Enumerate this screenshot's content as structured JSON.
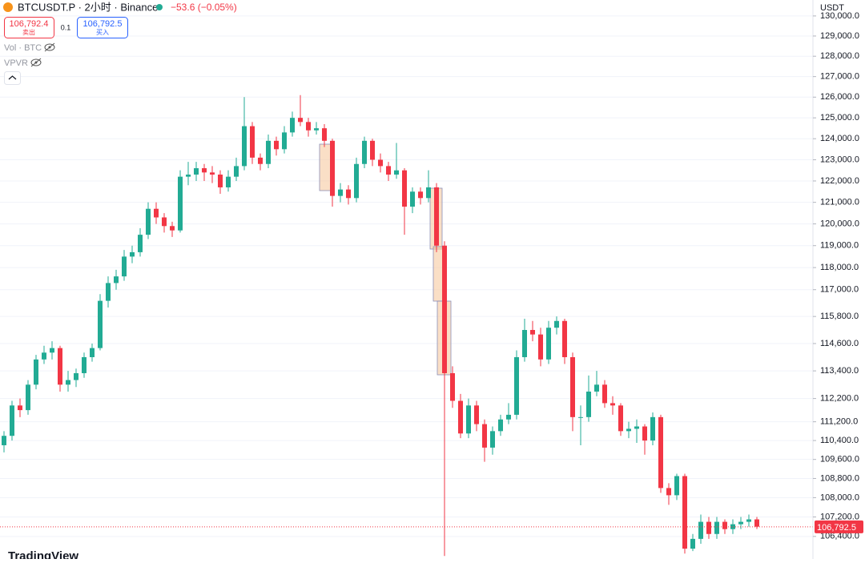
{
  "header": {
    "symbol": "BTCUSDT.P · 2小时 · Binance",
    "change": "−53.6 (−0.05%)",
    "sell_price": "106,792.4",
    "sell_label": "卖出",
    "quantity": "0.1",
    "buy_price": "106,792.5",
    "buy_label": "买入",
    "indicators": [
      "Vol · BTC",
      "VPVR"
    ]
  },
  "currency": "USDT",
  "logo": "TradingView",
  "chart_data": {
    "type": "candlestick",
    "log_scale": true,
    "grid": true,
    "up_color": "#22ab94",
    "down_color": "#f23645",
    "ylim": [
      105740,
      130800
    ],
    "yticks": [
      {
        "value": 130000,
        "label": "130,000.0"
      },
      {
        "value": 129000,
        "label": "129,000.0"
      },
      {
        "value": 128000,
        "label": "128,000.0"
      },
      {
        "value": 127000,
        "label": "127,000.0"
      },
      {
        "value": 126000,
        "label": "126,000.0"
      },
      {
        "value": 125000,
        "label": "125,000.0"
      },
      {
        "value": 124000,
        "label": "124,000.0"
      },
      {
        "value": 123000,
        "label": "123,000.0"
      },
      {
        "value": 122000,
        "label": "122,000.0"
      },
      {
        "value": 121000,
        "label": "121,000.0"
      },
      {
        "value": 120000,
        "label": "120,000.0"
      },
      {
        "value": 119000,
        "label": "119,000.0"
      },
      {
        "value": 118000,
        "label": "118,000.0"
      },
      {
        "value": 117000,
        "label": "117,000.0"
      },
      {
        "value": 115800,
        "label": "115,800.0"
      },
      {
        "value": 114600,
        "label": "114,600.0"
      },
      {
        "value": 113400,
        "label": "113,400.0"
      },
      {
        "value": 112200,
        "label": "112,200.0"
      },
      {
        "value": 111200,
        "label": "111,200.0"
      },
      {
        "value": 110400,
        "label": "110,400.0"
      },
      {
        "value": 109600,
        "label": "109,600.0"
      },
      {
        "value": 108800,
        "label": "108,800.0"
      },
      {
        "value": 108000,
        "label": "108,000.0"
      },
      {
        "value": 107200,
        "label": "107,200.0"
      },
      {
        "value": 106400,
        "label": "106,400.0"
      }
    ],
    "last_price": {
      "value": 106792.5,
      "label": "106,792.5"
    },
    "candles": [
      [
        110200,
        110800,
        109900,
        110600
      ],
      [
        110600,
        112100,
        110400,
        111900
      ],
      [
        111900,
        112200,
        111400,
        111700
      ],
      [
        111700,
        113000,
        111500,
        112800
      ],
      [
        112800,
        114100,
        112600,
        113900
      ],
      [
        113900,
        114500,
        113700,
        114200
      ],
      [
        114200,
        114700,
        113900,
        114400
      ],
      [
        114400,
        114500,
        112500,
        112800
      ],
      [
        112800,
        113400,
        112500,
        113000
      ],
      [
        113000,
        113500,
        112700,
        113300
      ],
      [
        113300,
        114200,
        113100,
        114000
      ],
      [
        114000,
        114600,
        113800,
        114400
      ],
      [
        114400,
        116800,
        114300,
        116500
      ],
      [
        116500,
        117600,
        116200,
        117300
      ],
      [
        117300,
        117900,
        117000,
        117600
      ],
      [
        117600,
        118800,
        117400,
        118500
      ],
      [
        118500,
        119000,
        118200,
        118700
      ],
      [
        118700,
        119800,
        118500,
        119500
      ],
      [
        119500,
        121000,
        119300,
        120700
      ],
      [
        120700,
        121000,
        120000,
        120300
      ],
      [
        120300,
        120500,
        119600,
        119900
      ],
      [
        119900,
        120100,
        119400,
        119700
      ],
      [
        119700,
        122500,
        119600,
        122200
      ],
      [
        122200,
        122900,
        121800,
        122300
      ],
      [
        122300,
        122900,
        122000,
        122600
      ],
      [
        122600,
        122800,
        122000,
        122400
      ],
      [
        122400,
        122700,
        121900,
        122300
      ],
      [
        122300,
        122500,
        121400,
        121700
      ],
      [
        121700,
        122500,
        121500,
        122200
      ],
      [
        122200,
        123100,
        122000,
        122700
      ],
      [
        122700,
        126000,
        122500,
        124600
      ],
      [
        124600,
        124800,
        122800,
        123100
      ],
      [
        123100,
        123300,
        122500,
        122800
      ],
      [
        122800,
        124200,
        122600,
        123900
      ],
      [
        123900,
        124100,
        123200,
        123500
      ],
      [
        123500,
        124600,
        123300,
        124300
      ],
      [
        124300,
        125300,
        124100,
        125000
      ],
      [
        125000,
        126100,
        124600,
        124800
      ],
      [
        124800,
        125000,
        124100,
        124400
      ],
      [
        124400,
        124800,
        124200,
        124500
      ],
      [
        124500,
        124700,
        123600,
        123900
      ],
      [
        123900,
        124000,
        120800,
        121300
      ],
      [
        121300,
        121900,
        121000,
        121600
      ],
      [
        121600,
        121800,
        120900,
        121200
      ],
      [
        121200,
        123100,
        121000,
        122800
      ],
      [
        122800,
        124100,
        122600,
        123900
      ],
      [
        123900,
        124000,
        122700,
        123000
      ],
      [
        123000,
        123300,
        122400,
        122700
      ],
      [
        122700,
        122900,
        122000,
        122300
      ],
      [
        122300,
        123800,
        122100,
        122500
      ],
      [
        122500,
        122600,
        119500,
        120800
      ],
      [
        120800,
        121700,
        120500,
        121500
      ],
      [
        121500,
        121700,
        120900,
        121200
      ],
      [
        121200,
        122500,
        121000,
        121700
      ],
      [
        121700,
        121900,
        118700,
        119000
      ],
      [
        119000,
        119200,
        105600,
        113300
      ],
      [
        113300,
        113600,
        111800,
        112100
      ],
      [
        112100,
        112400,
        110500,
        110700
      ],
      [
        110700,
        112200,
        110500,
        111900
      ],
      [
        111900,
        112100,
        110800,
        111100
      ],
      [
        111100,
        111300,
        109500,
        110100
      ],
      [
        110100,
        111000,
        109800,
        110800
      ],
      [
        110800,
        111500,
        110600,
        111300
      ],
      [
        111300,
        112000,
        111100,
        111500
      ],
      [
        111500,
        114300,
        111300,
        114000
      ],
      [
        114000,
        115700,
        113800,
        115200
      ],
      [
        115200,
        115600,
        114700,
        115000
      ],
      [
        115000,
        115300,
        113600,
        113900
      ],
      [
        113900,
        115600,
        113700,
        115300
      ],
      [
        115300,
        115800,
        115000,
        115600
      ],
      [
        115600,
        115700,
        113700,
        114000
      ],
      [
        114000,
        114200,
        110800,
        111400
      ],
      [
        111400,
        111900,
        110200,
        111400
      ],
      [
        111400,
        113200,
        111200,
        112500
      ],
      [
        112500,
        113400,
        112300,
        112800
      ],
      [
        112800,
        113000,
        111800,
        112000
      ],
      [
        112000,
        112300,
        111500,
        111900
      ],
      [
        111900,
        112000,
        110600,
        110800
      ],
      [
        110800,
        111200,
        110500,
        110900
      ],
      [
        110900,
        111300,
        110300,
        111000
      ],
      [
        111000,
        111100,
        109800,
        110400
      ],
      [
        110400,
        111600,
        110200,
        111400
      ],
      [
        111400,
        111500,
        108200,
        108400
      ],
      [
        108400,
        108600,
        107700,
        108100
      ],
      [
        108100,
        109000,
        107900,
        108900
      ],
      [
        108900,
        109000,
        105700,
        105900
      ],
      [
        105900,
        106500,
        105800,
        106300
      ],
      [
        106300,
        107300,
        106100,
        107000
      ],
      [
        107000,
        107200,
        106300,
        106500
      ],
      [
        106500,
        107200,
        106300,
        107000
      ],
      [
        107000,
        107100,
        106500,
        106700
      ],
      [
        106700,
        107100,
        106500,
        106900
      ],
      [
        106900,
        107200,
        106700,
        107000
      ],
      [
        107000,
        107300,
        106800,
        107100
      ],
      [
        107100,
        107200,
        106700,
        106800
      ]
    ]
  }
}
